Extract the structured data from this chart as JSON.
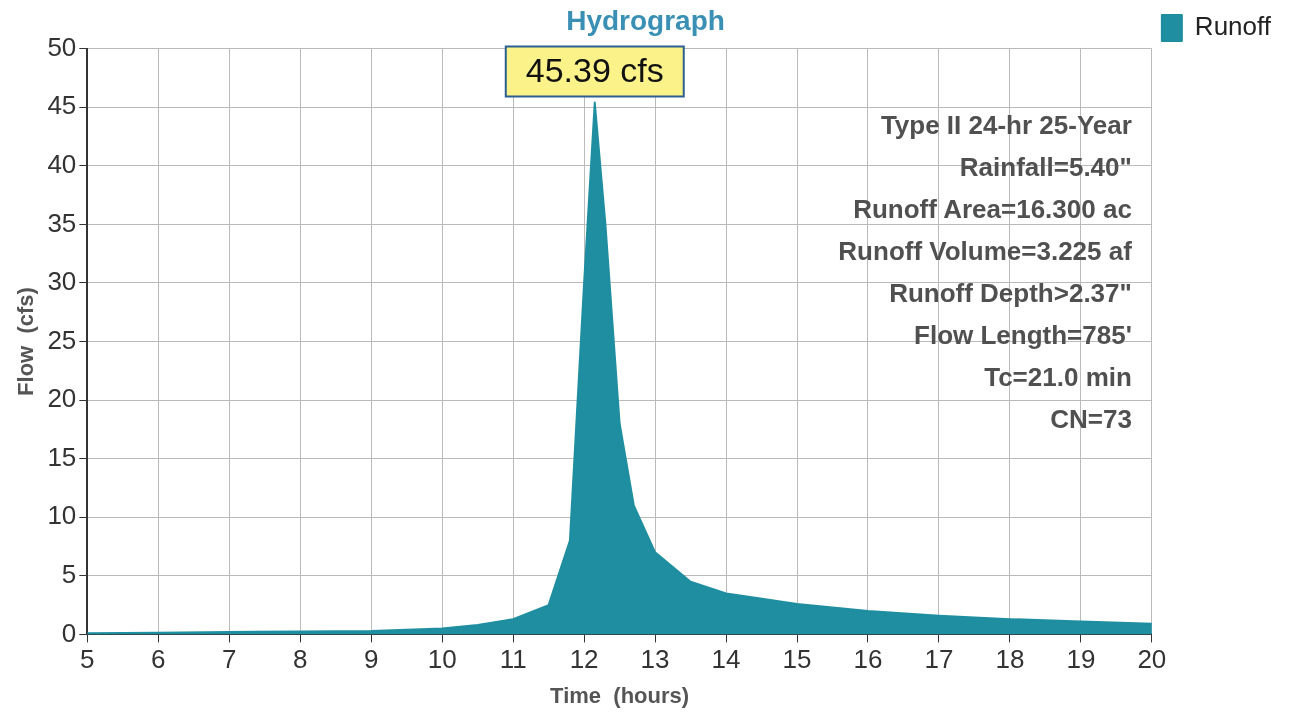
{
  "chart_data": {
    "type": "area",
    "title": "Hydrograph",
    "xlabel": "Time  (hours)",
    "ylabel": "Flow  (cfs)",
    "x": [
      5,
      6,
      7,
      8,
      9,
      10,
      10.5,
      11,
      11.5,
      11.8,
      12,
      12.15,
      12.3,
      12.5,
      12.7,
      13,
      13.5,
      14,
      15,
      16,
      17,
      18,
      19,
      20
    ],
    "series": [
      {
        "name": "Runoff",
        "color": "#1e8ea0",
        "values": [
          0.1,
          0.15,
          0.2,
          0.25,
          0.3,
          0.5,
          0.8,
          1.3,
          2.5,
          8,
          30,
          45.39,
          35,
          18,
          11,
          7,
          4.5,
          3.5,
          2.6,
          2,
          1.6,
          1.3,
          1.1,
          0.9
        ]
      }
    ],
    "xlim": [
      5,
      20
    ],
    "xticks": [
      5,
      6,
      7,
      8,
      9,
      10,
      11,
      12,
      13,
      14,
      15,
      16,
      17,
      18,
      19,
      20
    ],
    "ylim": [
      0,
      50
    ],
    "yticks": [
      0,
      5,
      10,
      15,
      20,
      25,
      30,
      35,
      40,
      45,
      50
    ],
    "grid": true,
    "legend": "top right",
    "marker": "none",
    "annotations": [
      {
        "text": "45.39 cfs",
        "x": 12.15,
        "y": 45.39
      },
      "Type II 24-hr 25-Year",
      "Rainfall=5.40\"",
      "Runoff Area=16.300 ac",
      "Runoff Volume=3.225 af",
      "Runoff Depth>2.37\"",
      "Flow Length=785'",
      "Tc=21.0 min",
      "CN=73"
    ]
  }
}
